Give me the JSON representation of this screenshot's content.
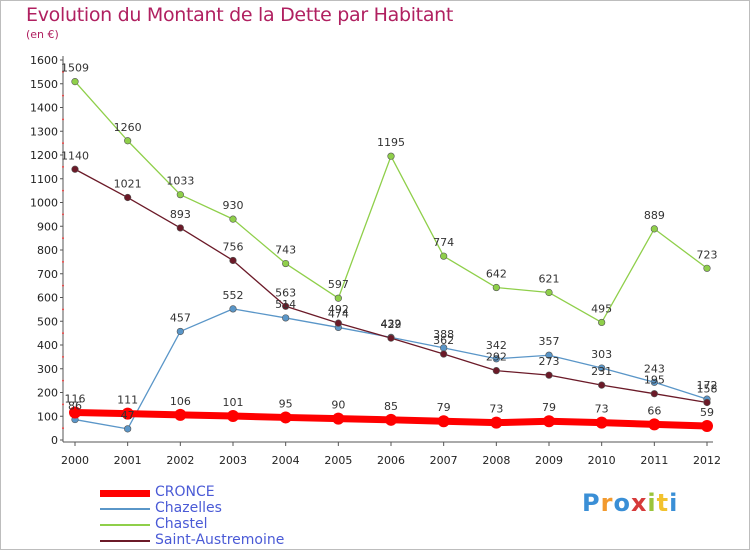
{
  "title": "Evolution du Montant de la Dette par Habitant",
  "subtitle": "(en €)",
  "logo": {
    "text": "Proxiti",
    "colors": [
      "#3a8fd6",
      "#f29a2e",
      "#3a8fd6",
      "#d63a3a",
      "#9bc43a",
      "#f2c22e",
      "#3a8fd6"
    ]
  },
  "chart_data": {
    "type": "line",
    "x": [
      "2000",
      "2001",
      "2002",
      "2003",
      "2004",
      "2005",
      "2006",
      "2007",
      "2008",
      "2009",
      "2010",
      "2011",
      "2012"
    ],
    "ylim": [
      0,
      1600
    ],
    "yticks": [
      0,
      100,
      200,
      300,
      400,
      500,
      600,
      700,
      800,
      900,
      1000,
      1100,
      1200,
      1300,
      1400,
      1500,
      1600
    ],
    "grid": false,
    "legend_position": "bottom-left",
    "series": [
      {
        "name": "CRONCE",
        "color": "#ff0000",
        "width": 7,
        "values": [
          116,
          111,
          106,
          101,
          95,
          90,
          85,
          79,
          73,
          79,
          73,
          66,
          59
        ]
      },
      {
        "name": "Chazelles",
        "color": "#5a96c8",
        "width": 1.3,
        "values": [
          86,
          47,
          457,
          552,
          514,
          474,
          432,
          388,
          342,
          357,
          303,
          243,
          172
        ]
      },
      {
        "name": "Chastel",
        "color": "#8fcf4a",
        "width": 1.3,
        "values": [
          1509,
          1260,
          1033,
          930,
          743,
          597,
          1195,
          774,
          642,
          621,
          495,
          889,
          723
        ]
      },
      {
        "name": "Saint-Austremoine",
        "color": "#6b1a28",
        "width": 1.3,
        "values": [
          1140,
          1021,
          893,
          756,
          563,
          492,
          429,
          362,
          292,
          273,
          231,
          195,
          158
        ]
      }
    ]
  }
}
